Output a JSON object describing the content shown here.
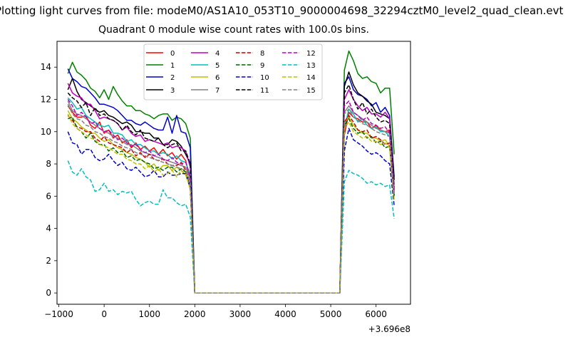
{
  "figure": {
    "suptitle": "Plotting light curves from file: modeM0/AS1A10_053T10_9000004698_32294cztM0_level2_quad_clean.evt",
    "title": "Quadrant 0 module wise count rates with 100.0s bins.",
    "x_offset_label": "+3.696e8"
  },
  "chart_data": {
    "type": "line",
    "title": "Quadrant 0 module wise count rates with 100.0s bins.",
    "xlabel": "",
    "ylabel": "",
    "x_offset": 369600000,
    "xlim": [
      -1040,
      6760
    ],
    "ylim": [
      -0.7,
      15.6
    ],
    "xticks": [
      -1000,
      0,
      1000,
      2000,
      3000,
      4000,
      5000,
      6000
    ],
    "xtick_labels": [
      "−1000",
      "0",
      "1000",
      "2000",
      "3000",
      "4000",
      "5000",
      "6000"
    ],
    "yticks": [
      0,
      2,
      4,
      6,
      8,
      10,
      12,
      14
    ],
    "ytick_labels": [
      "0",
      "2",
      "4",
      "6",
      "8",
      "10",
      "12",
      "14"
    ],
    "grid": false,
    "legend_location": "top-center",
    "legend_columns": 4,
    "x_segment1": [
      -800,
      -700,
      -600,
      -500,
      -400,
      -300,
      -200,
      -100,
      0,
      100,
      200,
      300,
      400,
      500,
      600,
      700,
      800,
      900,
      1000,
      1100,
      1200,
      1300,
      1400,
      1500,
      1600,
      1700,
      1800,
      1900,
      2000
    ],
    "x_gap": [
      2000,
      5200
    ],
    "x_segment2": [
      5200,
      5300,
      5400,
      5500,
      5600,
      5700,
      5800,
      5900,
      6000,
      6100,
      6200,
      6300,
      6400
    ],
    "series": [
      {
        "name": "0",
        "color": "#ff0000",
        "dash": "solid",
        "segment1": [
          11.6,
          11.2,
          10.9,
          10.9,
          11.0,
          10.4,
          10.2,
          10.6,
          9.9,
          10.1,
          9.6,
          9.8,
          9.3,
          9.5,
          9.0,
          9.3,
          8.9,
          9.1,
          8.8,
          9.0,
          8.6,
          8.9,
          8.5,
          8.7,
          8.3,
          8.6,
          8.2,
          7.0,
          0.0
        ],
        "segment2": [
          0.0,
          9.8,
          11.2,
          10.9,
          10.8,
          10.6,
          10.6,
          10.2,
          10.4,
          10.1,
          10.0,
          10.1,
          6.5
        ]
      },
      {
        "name": "1",
        "color": "#008000",
        "dash": "solid",
        "segment1": [
          13.6,
          14.3,
          13.7,
          13.5,
          13.2,
          12.7,
          12.5,
          12.1,
          12.6,
          12.0,
          12.8,
          12.3,
          11.9,
          11.6,
          11.6,
          11.3,
          11.3,
          11.1,
          11.0,
          10.8,
          11.0,
          11.1,
          11.1,
          10.7,
          10.9,
          10.8,
          10.5,
          9.6,
          0.0
        ],
        "segment2": [
          0.0,
          13.8,
          15.0,
          14.4,
          13.6,
          13.3,
          13.4,
          13.1,
          13.0,
          12.4,
          12.7,
          12.7,
          8.6
        ]
      },
      {
        "name": "2",
        "color": "#0000cc",
        "dash": "solid",
        "segment1": [
          13.9,
          13.3,
          13.1,
          12.8,
          12.7,
          12.4,
          12.1,
          11.7,
          11.7,
          11.6,
          11.5,
          11.3,
          11.0,
          10.7,
          10.7,
          10.5,
          10.4,
          10.6,
          10.4,
          10.2,
          10.1,
          10.1,
          10.9,
          9.9,
          11.0,
          10.0,
          9.9,
          9.0,
          0.0
        ],
        "segment2": [
          0.0,
          13.0,
          13.4,
          12.6,
          12.3,
          12.2,
          12.0,
          11.6,
          11.8,
          11.2,
          11.5,
          11.0,
          7.2
        ]
      },
      {
        "name": "3",
        "color": "#000000",
        "dash": "solid",
        "segment1": [
          12.6,
          13.3,
          12.5,
          12.0,
          11.8,
          11.6,
          11.4,
          11.2,
          11.3,
          11.0,
          10.9,
          10.7,
          10.5,
          10.6,
          10.4,
          10.0,
          10.0,
          9.9,
          9.9,
          9.6,
          9.6,
          9.2,
          9.2,
          9.5,
          9.4,
          9.1,
          8.6,
          8.0,
          0.0
        ],
        "segment2": [
          0.0,
          12.8,
          13.7,
          12.9,
          12.4,
          12.2,
          11.9,
          11.7,
          11.2,
          11.1,
          11.0,
          10.8,
          7.0
        ]
      },
      {
        "name": "4",
        "color": "#bf00bf",
        "dash": "solid",
        "segment1": [
          13.0,
          12.4,
          12.2,
          12.1,
          11.7,
          11.7,
          11.3,
          10.8,
          10.9,
          10.8,
          10.7,
          10.5,
          10.1,
          10.3,
          9.9,
          9.7,
          9.8,
          9.4,
          9.5,
          9.4,
          9.3,
          9.2,
          9.3,
          9.0,
          9.1,
          9.0,
          8.8,
          7.8,
          0.0
        ],
        "segment2": [
          0.0,
          12.0,
          12.6,
          12.0,
          11.6,
          11.3,
          11.5,
          11.1,
          11.1,
          10.9,
          11.2,
          10.8,
          6.4
        ]
      },
      {
        "name": "5",
        "color": "#00bfbf",
        "dash": "solid",
        "segment1": [
          12.1,
          11.8,
          11.4,
          11.5,
          11.0,
          10.8,
          10.6,
          10.4,
          10.3,
          10.4,
          9.9,
          9.9,
          9.8,
          9.4,
          9.5,
          9.2,
          9.2,
          9.0,
          8.8,
          8.8,
          8.6,
          8.7,
          8.6,
          8.3,
          8.5,
          8.2,
          8.1,
          7.3,
          0.0
        ],
        "segment2": [
          0.0,
          10.2,
          11.4,
          11.1,
          10.6,
          10.8,
          10.4,
          10.2,
          10.3,
          10.0,
          10.0,
          9.7,
          6.0
        ]
      },
      {
        "name": "6",
        "color": "#bfbf00",
        "dash": "solid",
        "segment1": [
          11.3,
          10.8,
          10.6,
          10.3,
          10.1,
          9.9,
          9.9,
          9.6,
          9.4,
          9.5,
          9.2,
          9.0,
          8.9,
          8.7,
          8.6,
          8.4,
          8.3,
          8.1,
          7.8,
          8.0,
          7.6,
          7.9,
          7.9,
          7.6,
          7.8,
          7.6,
          7.3,
          6.5,
          0.0
        ],
        "segment2": [
          0.0,
          10.6,
          10.9,
          10.4,
          10.1,
          9.9,
          9.9,
          9.6,
          9.6,
          9.4,
          9.5,
          9.1,
          5.8
        ]
      },
      {
        "name": "7",
        "color": "#808080",
        "dash": "solid",
        "segment1": [
          11.9,
          11.3,
          11.1,
          11.0,
          10.8,
          10.6,
          10.4,
          10.2,
          10.0,
          9.9,
          9.7,
          9.6,
          9.4,
          9.2,
          9.2,
          9.0,
          8.8,
          8.7,
          8.6,
          8.5,
          8.4,
          8.3,
          8.2,
          8.1,
          8.0,
          7.9,
          7.8,
          7.0,
          0.0
        ],
        "segment2": [
          0.0,
          11.2,
          11.6,
          11.2,
          11.0,
          10.8,
          10.6,
          10.4,
          10.2,
          10.1,
          10.0,
          9.9,
          6.1
        ]
      },
      {
        "name": "8",
        "color": "#cc0000",
        "dash": "dashed",
        "segment1": [
          11.0,
          10.7,
          10.3,
          10.2,
          10.0,
          10.0,
          9.6,
          9.4,
          9.7,
          9.3,
          9.2,
          9.1,
          9.0,
          8.7,
          8.9,
          8.5,
          8.7,
          8.4,
          8.6,
          8.3,
          8.2,
          8.3,
          8.0,
          7.9,
          7.9,
          8.1,
          7.6,
          6.8,
          0.0
        ],
        "segment2": [
          0.0,
          10.6,
          11.0,
          10.6,
          10.1,
          10.0,
          10.1,
          9.6,
          9.7,
          9.5,
          9.2,
          9.3,
          6.2
        ]
      },
      {
        "name": "9",
        "color": "#006400",
        "dash": "dashed",
        "segment1": [
          10.8,
          10.9,
          10.2,
          10.0,
          9.6,
          9.9,
          9.4,
          9.2,
          9.2,
          8.8,
          9.0,
          8.7,
          8.8,
          8.4,
          8.5,
          8.2,
          8.3,
          8.1,
          8.0,
          7.7,
          7.8,
          7.6,
          7.8,
          7.8,
          7.5,
          7.7,
          7.5,
          6.6,
          0.0
        ],
        "segment2": [
          0.0,
          10.4,
          10.8,
          10.2,
          9.9,
          10.0,
          9.6,
          9.7,
          9.3,
          9.4,
          9.0,
          9.1,
          6.0
        ]
      },
      {
        "name": "10",
        "color": "#0000cc",
        "dash": "dashed",
        "segment1": [
          10.0,
          9.3,
          9.2,
          8.6,
          8.9,
          8.9,
          8.4,
          8.2,
          8.3,
          8.6,
          8.2,
          7.9,
          8.1,
          7.7,
          7.6,
          7.8,
          7.5,
          7.2,
          7.3,
          7.6,
          7.2,
          7.2,
          7.5,
          7.3,
          7.3,
          7.4,
          7.4,
          6.5,
          0.0
        ],
        "segment2": [
          0.0,
          8.8,
          10.2,
          9.5,
          9.3,
          9.1,
          8.8,
          8.6,
          8.7,
          8.5,
          8.2,
          8.0,
          5.4
        ]
      },
      {
        "name": "11",
        "color": "#000000",
        "dash": "dashed",
        "segment1": [
          12.4,
          12.1,
          11.9,
          11.5,
          11.8,
          11.0,
          11.5,
          11.0,
          11.1,
          10.8,
          10.7,
          10.5,
          10.1,
          10.4,
          10.0,
          9.8,
          10.1,
          9.6,
          9.5,
          9.4,
          9.6,
          9.2,
          9.0,
          9.2,
          9.3,
          8.8,
          8.8,
          8.0,
          0.0
        ],
        "segment2": [
          0.0,
          12.4,
          12.9,
          12.0,
          11.4,
          11.8,
          11.1,
          11.4,
          10.9,
          10.6,
          10.7,
          10.5,
          6.6
        ]
      },
      {
        "name": "12",
        "color": "#bf00bf",
        "dash": "dashed",
        "segment1": [
          12.0,
          11.6,
          11.0,
          11.2,
          10.9,
          10.5,
          10.6,
          10.2,
          10.0,
          10.1,
          9.8,
          9.5,
          9.6,
          9.3,
          9.1,
          9.2,
          8.9,
          8.7,
          8.8,
          8.5,
          8.6,
          8.3,
          8.2,
          8.4,
          8.1,
          8.0,
          8.1,
          7.2,
          0.0
        ],
        "segment2": [
          0.0,
          11.6,
          11.9,
          11.2,
          11.0,
          10.7,
          10.9,
          10.5,
          10.4,
          10.2,
          10.3,
          9.9,
          6.3
        ]
      },
      {
        "name": "13",
        "color": "#00bfbf",
        "dash": "dashed",
        "segment1": [
          8.2,
          7.5,
          7.3,
          7.7,
          7.2,
          7.0,
          6.3,
          6.4,
          6.8,
          6.3,
          6.4,
          6.1,
          6.3,
          6.2,
          6.3,
          5.8,
          5.4,
          5.6,
          5.7,
          5.5,
          5.5,
          6.4,
          5.9,
          5.9,
          5.6,
          5.4,
          5.5,
          4.7,
          0.0
        ],
        "segment2": [
          0.0,
          6.9,
          7.6,
          7.4,
          7.3,
          7.1,
          6.8,
          6.9,
          6.7,
          6.8,
          6.6,
          6.7,
          4.6
        ]
      },
      {
        "name": "14",
        "color": "#bfbf00",
        "dash": "dashed",
        "segment1": [
          11.1,
          10.5,
          10.2,
          10.0,
          9.8,
          9.6,
          9.5,
          9.2,
          9.1,
          9.0,
          8.8,
          8.6,
          8.6,
          8.3,
          8.2,
          8.0,
          8.0,
          7.7,
          7.9,
          7.5,
          7.7,
          7.3,
          7.4,
          7.6,
          7.2,
          7.6,
          7.4,
          6.4,
          0.0
        ],
        "segment2": [
          0.0,
          10.2,
          10.6,
          10.0,
          9.8,
          9.6,
          9.7,
          9.4,
          9.4,
          9.2,
          9.3,
          9.0,
          5.7
        ]
      },
      {
        "name": "15",
        "color": "#808080",
        "dash": "dashed",
        "segment1": [
          11.7,
          11.1,
          10.8,
          10.7,
          10.4,
          10.3,
          10.0,
          9.9,
          9.7,
          9.6,
          9.4,
          9.3,
          9.1,
          9.0,
          8.9,
          8.7,
          8.6,
          8.5,
          8.4,
          8.3,
          8.2,
          8.1,
          8.0,
          7.9,
          7.8,
          7.7,
          7.6,
          6.9,
          0.0
        ],
        "segment2": [
          0.0,
          11.1,
          11.4,
          10.9,
          10.7,
          10.5,
          10.4,
          10.2,
          10.0,
          9.9,
          9.8,
          9.7,
          6.0
        ]
      }
    ]
  }
}
